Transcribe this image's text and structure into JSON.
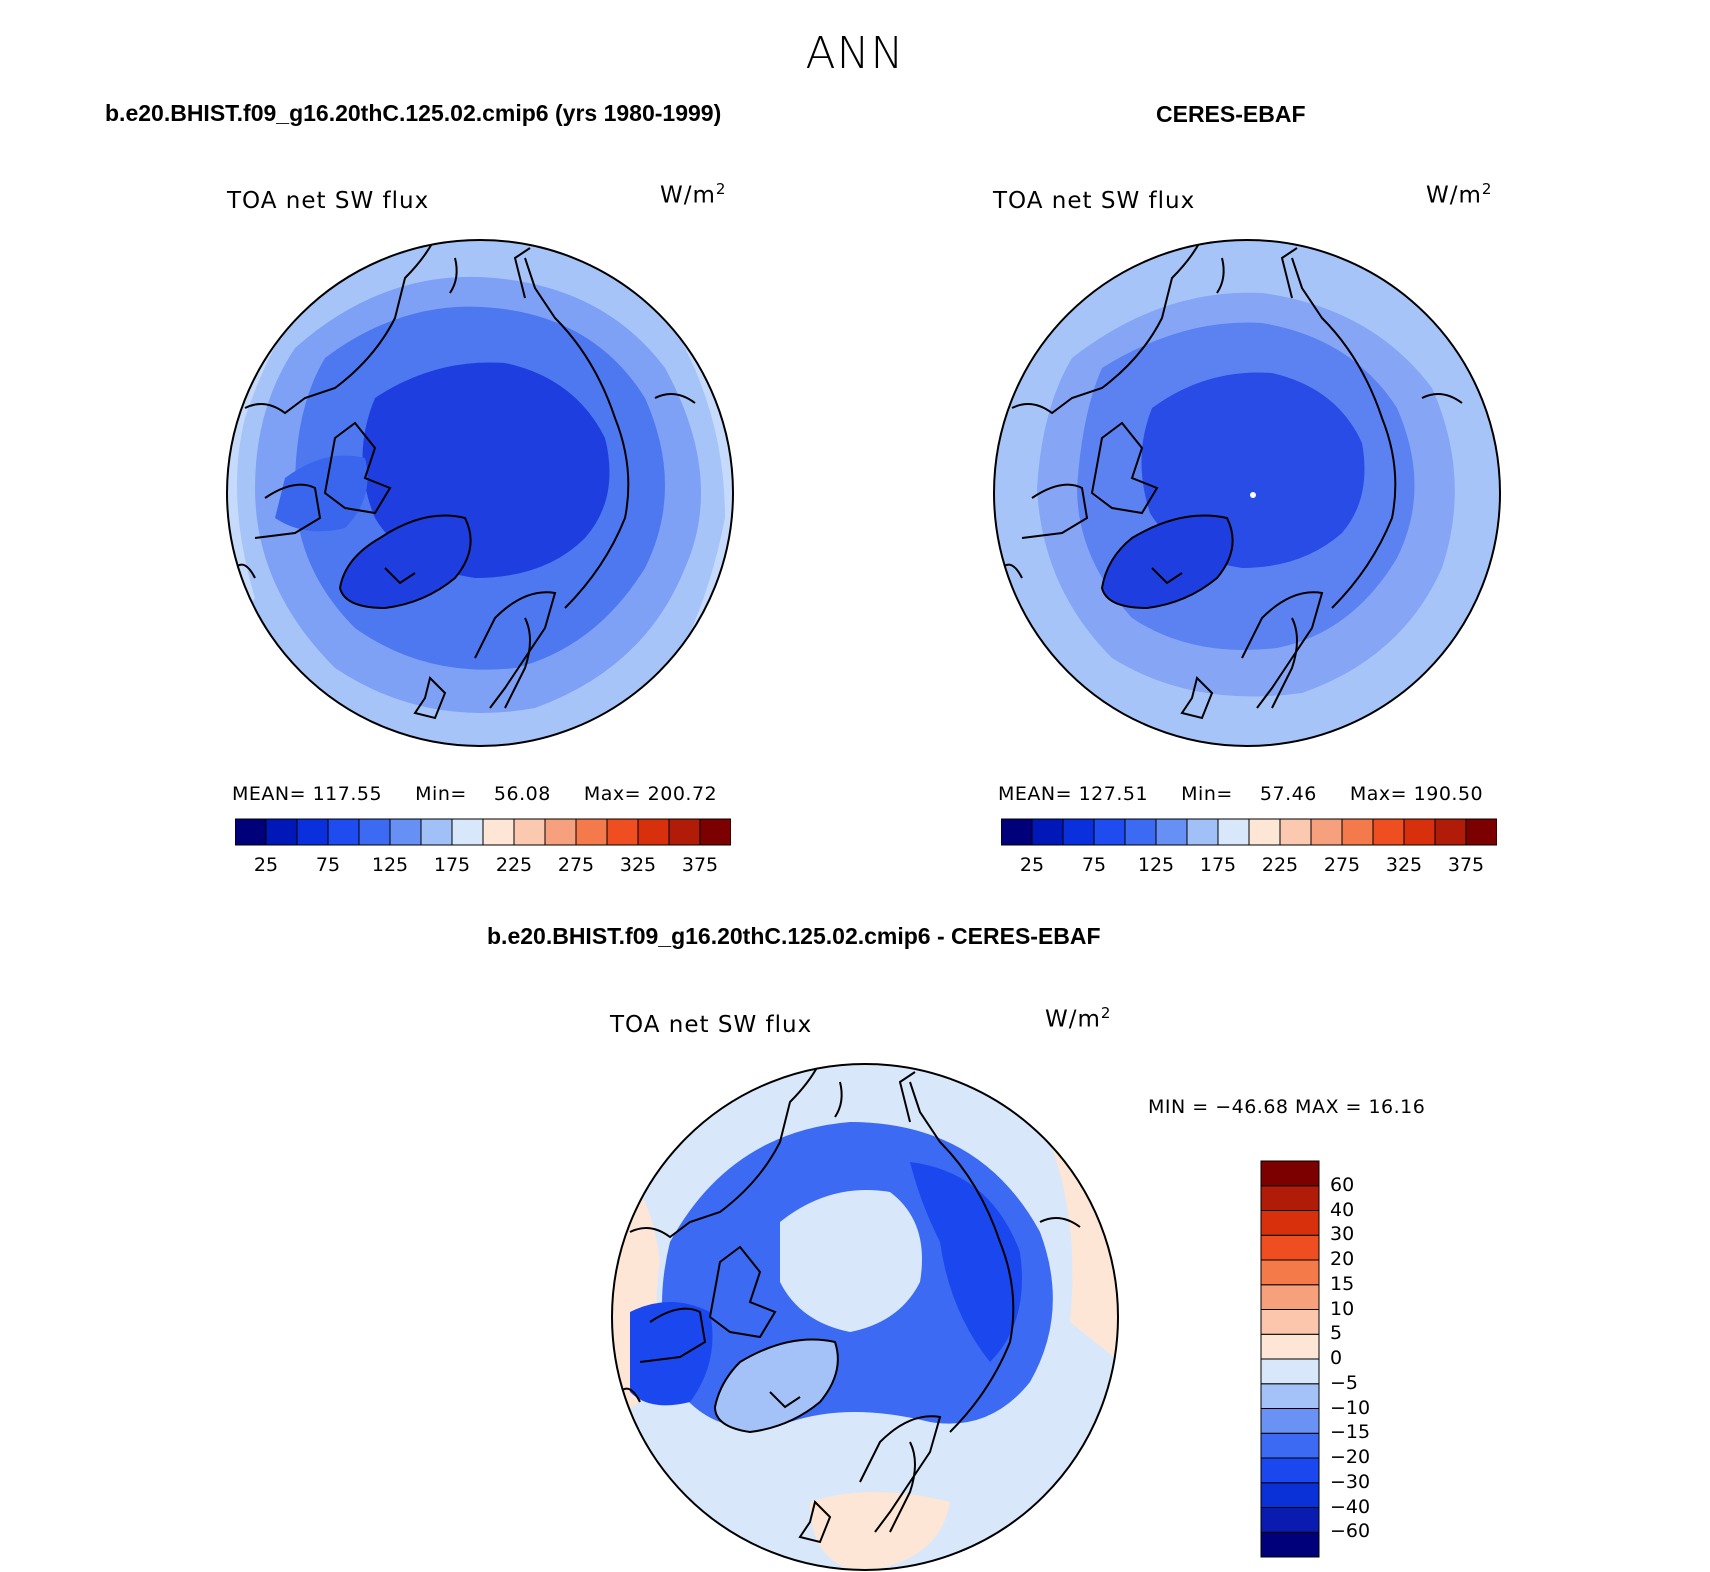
{
  "figure": {
    "title": "ANN",
    "colors": {
      "coastline": "#000000"
    }
  },
  "panels": {
    "model": {
      "title": "b.e20.BHIST.f09_g16.20thC.125.02.cmip6 (yrs 1980-1999)",
      "variable": "TOA net SW flux",
      "units": "W/m",
      "units_exp": "2",
      "stats": {
        "mean_label": "MEAN=",
        "mean": "117.55",
        "min_label": "Min=",
        "min": "56.08",
        "max_label": "Max=",
        "max": "200.72"
      }
    },
    "obs": {
      "title": "CERES-EBAF",
      "variable": "TOA net SW flux",
      "units": "W/m",
      "units_exp": "2",
      "stats": {
        "mean_label": "MEAN=",
        "mean": "127.51",
        "min_label": "Min=",
        "min": "57.46",
        "max_label": "Max=",
        "max": "190.50"
      }
    },
    "diff": {
      "title": "b.e20.BHIST.f09_g16.20thC.125.02.cmip6 - CERES-EBAF",
      "variable": "TOA net SW flux",
      "units": "W/m",
      "units_exp": "2",
      "stats": {
        "text": "MIN = −46.68 MAX =  16.16"
      }
    }
  },
  "colorbars": {
    "absolute": {
      "orientation": "horizontal",
      "colors": [
        "#00007a",
        "#0018b8",
        "#0a2fdc",
        "#1e4cf0",
        "#3c6af2",
        "#6690f4",
        "#a2c0f8",
        "#d8e8fa",
        "#fde6d6",
        "#fbc8b0",
        "#f7a07e",
        "#f47a4c",
        "#ee4e20",
        "#d8300c",
        "#b01c08",
        "#7c0000"
      ],
      "tick_labels": [
        "25",
        "75",
        "125",
        "175",
        "225",
        "275",
        "325",
        "375"
      ]
    },
    "difference": {
      "orientation": "vertical",
      "colors_bottom_to_top": [
        "#00007a",
        "#0a1cb0",
        "#0a30d8",
        "#1a48ee",
        "#3c6af2",
        "#6a92f4",
        "#a4c2f8",
        "#d8e8fa",
        "#fde6d6",
        "#fbc6ac",
        "#f7a07c",
        "#f47a4a",
        "#ee4e20",
        "#d8300c",
        "#b01c08",
        "#7c0000"
      ],
      "tick_labels_top_to_bottom": [
        "60",
        "40",
        "30",
        "20",
        "15",
        "10",
        "5",
        "0",
        "−5",
        "−10",
        "−15",
        "−20",
        "−30",
        "−40",
        "−60"
      ]
    }
  },
  "map_fields": {
    "model": {
      "projection": "north polar stereographic",
      "background_color": "#a6c4f8",
      "regions": [
        {
          "name": "midlatitude band",
          "color": "#7ea0f5"
        },
        {
          "name": "subarctic ring",
          "color": "#4d78f0"
        },
        {
          "name": "arctic ocean core",
          "color": "#1f3ee0"
        },
        {
          "name": "greenland ice sheet",
          "color": "#1f3ee0"
        },
        {
          "name": "outer rim",
          "color": "#c6dafb"
        }
      ]
    },
    "obs": {
      "projection": "north polar stereographic",
      "background_color": "#a6c4f8",
      "regions": [
        {
          "name": "midlatitude band",
          "color": "#86a6f5"
        },
        {
          "name": "subarctic ring",
          "color": "#5c82f2"
        },
        {
          "name": "arctic ocean core",
          "color": "#2a4ce6"
        },
        {
          "name": "greenland ice sheet",
          "color": "#1f3ee0"
        }
      ]
    },
    "diff": {
      "projection": "north polar stereographic",
      "background_color": "#d8e8fa",
      "regions": [
        {
          "name": "positive midlatitudes",
          "color": "#fde6d6"
        },
        {
          "name": "negative ring",
          "color": "#3c6af2"
        },
        {
          "name": "strong negative continents",
          "color": "#1a48ee"
        },
        {
          "name": "near-zero arctic",
          "color": "#d8e8fa"
        },
        {
          "name": "weak negative patches",
          "color": "#a4c2f8"
        }
      ]
    }
  }
}
